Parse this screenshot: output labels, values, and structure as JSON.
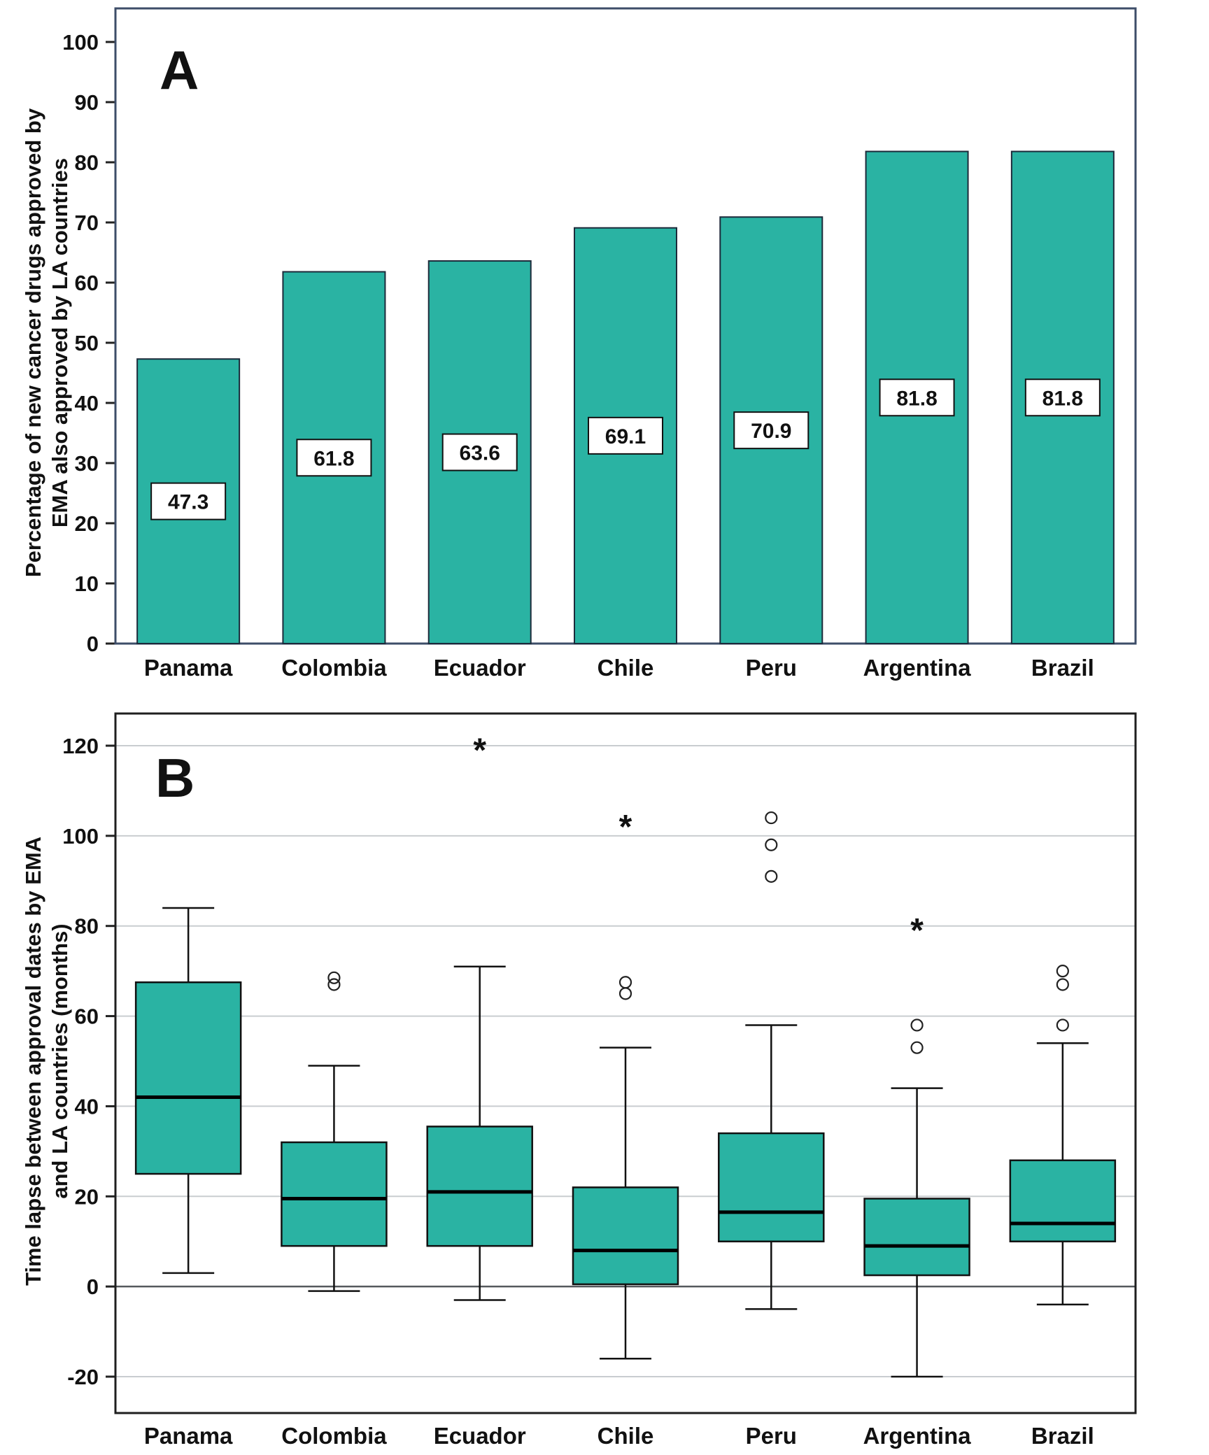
{
  "page": {
    "background": "#ffffff"
  },
  "chart_data": [
    {
      "type": "bar",
      "panel_label": "A",
      "ylabel_lines": [
        "Percentage of new cancer drugs approved by",
        "EMA also approved by LA countries"
      ],
      "categories": [
        "Panama",
        "Colombia",
        "Ecuador",
        "Chile",
        "Peru",
        "Argentina",
        "Brazil"
      ],
      "values": [
        47.3,
        61.8,
        63.6,
        69.1,
        70.9,
        81.8,
        81.8
      ],
      "bar_labels": [
        "47.3",
        "61.8",
        "63.6",
        "69.1",
        "70.9",
        "81.8",
        "81.8"
      ],
      "ylim": [
        0,
        100
      ],
      "yticks": [
        0,
        10,
        20,
        30,
        40,
        50,
        60,
        70,
        80,
        90,
        100
      ],
      "grid": false,
      "legend": "none",
      "bar_color": "#2ab3a3",
      "frame_color": "#3d4d68"
    },
    {
      "type": "boxplot",
      "panel_label": "B",
      "ylabel_lines": [
        "Time lapse between approval dates by EMA",
        "and LA countries (months)"
      ],
      "categories": [
        "Panama",
        "Colombia",
        "Ecuador",
        "Chile",
        "Peru",
        "Argentina",
        "Brazil"
      ],
      "ylim": [
        -20,
        120
      ],
      "yticks": [
        -20,
        0,
        20,
        40,
        60,
        80,
        100,
        120
      ],
      "grid": true,
      "legend": "none",
      "box_color": "#2ab3a3",
      "frame_color": "#1f1f1f",
      "zero_line": 0,
      "series": [
        {
          "name": "Panama",
          "min": 3,
          "q1": 25,
          "median": 42,
          "q3": 67.5,
          "max": 84,
          "outliers_circle": [],
          "outliers_star": []
        },
        {
          "name": "Colombia",
          "min": -1,
          "q1": 9,
          "median": 19.5,
          "q3": 32,
          "max": 49,
          "outliers_circle": [
            67,
            68.5
          ],
          "outliers_star": []
        },
        {
          "name": "Ecuador",
          "min": -3,
          "q1": 9,
          "median": 21,
          "q3": 35.5,
          "max": 71,
          "outliers_circle": [],
          "outliers_star": [
            119
          ]
        },
        {
          "name": "Chile",
          "min": -16,
          "q1": 0.5,
          "median": 8,
          "q3": 22,
          "max": 53,
          "outliers_circle": [
            65,
            67.5
          ],
          "outliers_star": [
            102
          ]
        },
        {
          "name": "Peru",
          "min": -5,
          "q1": 10,
          "median": 16.5,
          "q3": 34,
          "max": 58,
          "outliers_circle": [
            91,
            98,
            104
          ],
          "outliers_star": []
        },
        {
          "name": "Argentina",
          "min": -20,
          "q1": 2.5,
          "median": 9,
          "q3": 19.5,
          "max": 44,
          "outliers_circle": [
            53,
            58
          ],
          "outliers_star": [
            79
          ]
        },
        {
          "name": "Brazil",
          "min": -4,
          "q1": 10,
          "median": 14,
          "q3": 28,
          "max": 54,
          "outliers_circle": [
            58,
            67,
            70
          ],
          "outliers_star": []
        }
      ]
    }
  ]
}
